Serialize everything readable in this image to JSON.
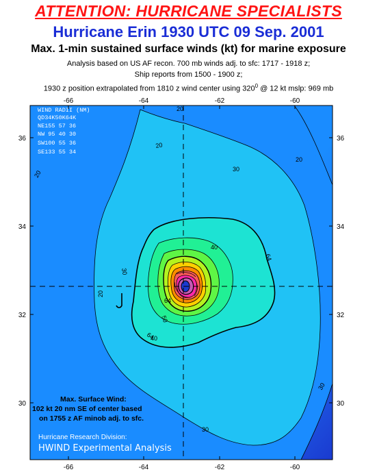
{
  "header": {
    "attention": "ATTENTION: HURRICANE SPECIALISTS",
    "storm": "Hurricane Erin 1930 UTC 09 Sep. 2001",
    "subtitle": "Max. 1-min sustained surface winds (kt) for marine exposure",
    "note1": "Analysis based on US AF recon. 700 mb winds adj. to sfc: 1717 - 1918 z;",
    "note2": "Ship reports from  1500 - 1900 z;",
    "note3_a": "1930 z position extrapolated from 1810 z wind center using 320",
    "note3_deg": "0",
    "note3_b": " @ 12 kt  mslp: 969 mb"
  },
  "axes": {
    "lon_labels": [
      "-66",
      "-64",
      "-62",
      "-60"
    ],
    "lat_labels": [
      "36",
      "34",
      "32",
      "30"
    ]
  },
  "wind_radii": {
    "title": "WIND RADII (NM)",
    "header": "QD34K50K64K",
    "rows": [
      "NE155  57  36",
      "NW  95  40  30",
      "SW100  55  36",
      "SE133  55  34"
    ]
  },
  "contour_labels": [
    "20",
    "20",
    "20",
    "20",
    "30",
    "30",
    "30",
    "30",
    "40",
    "40",
    "64",
    "64",
    "50",
    "64"
  ],
  "max_wind": {
    "line1": "Max. Surface Wind:",
    "line2": "102 kt 20 nm SE of center based",
    "line3": "on 1755 z AF minob adj. to sfc."
  },
  "credit": {
    "line1": "Hurricane Research Division:",
    "line2": "HWIND Experimental Analysis"
  },
  "colors": {
    "band_lt20": "#1f5ee6",
    "band_20": "#1a8cff",
    "band_30": "#20c2f5",
    "band_40": "#1de3d3",
    "band_50": "#21f095",
    "band_60": "#5ff545",
    "band_64": "#b4f21e",
    "band_70": "#ffd000",
    "band_80": "#ff8c00",
    "band_90": "#ff5a5a",
    "band_100": "#ff2aa8",
    "edge_outer": "#1a3ad0"
  }
}
